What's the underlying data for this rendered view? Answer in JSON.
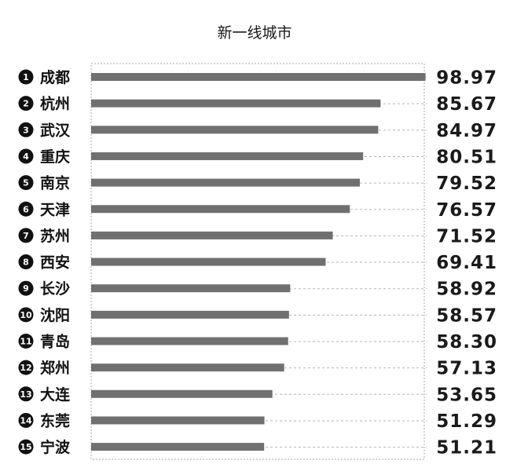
{
  "chart_data": {
    "type": "bar",
    "orientation": "horizontal",
    "title": "新一线城市",
    "ranks": [
      "1",
      "2",
      "3",
      "4",
      "5",
      "6",
      "7",
      "8",
      "9",
      "10",
      "11",
      "12",
      "13",
      "14",
      "15"
    ],
    "categories": [
      "成都",
      "杭州",
      "武汉",
      "重庆",
      "南京",
      "天津",
      "苏州",
      "西安",
      "长沙",
      "沈阳",
      "青岛",
      "郑州",
      "大连",
      "东莞",
      "宁波"
    ],
    "values": [
      98.97,
      85.67,
      84.97,
      80.51,
      79.52,
      76.57,
      71.52,
      69.41,
      58.92,
      58.57,
      58.3,
      57.13,
      53.65,
      51.29,
      51.21
    ],
    "value_labels": [
      "98.97",
      "85.67",
      "84.97",
      "80.51",
      "79.52",
      "76.57",
      "71.52",
      "69.41",
      "58.92",
      "58.57",
      "58.30",
      "57.13",
      "53.65",
      "51.29",
      "51.21"
    ],
    "xlim": [
      0,
      100
    ],
    "grid": "dashed row guides",
    "legend": "none"
  },
  "colors": {
    "bar": "#707070",
    "guide": "#b5b5b5",
    "text": "#111111",
    "badge": "#111111"
  }
}
